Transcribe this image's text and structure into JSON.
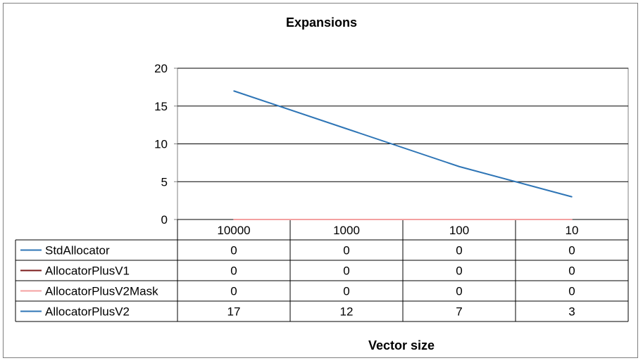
{
  "chart_data": {
    "type": "line",
    "title": "Expansions",
    "xlabel": "Vector size",
    "ylabel": "",
    "categories": [
      "10000",
      "1000",
      "100",
      "10"
    ],
    "ylim": [
      0,
      20
    ],
    "yticks": [
      0,
      5,
      10,
      15,
      20
    ],
    "grid": true,
    "legend": "data-table",
    "series": [
      {
        "name": "StdAllocator",
        "color": "#2e75b6",
        "values": [
          0,
          0,
          0,
          0
        ]
      },
      {
        "name": "AllocatorPlusV1",
        "color": "#7b1a1a",
        "values": [
          0,
          0,
          0,
          0
        ]
      },
      {
        "name": "AllocatorPlusV2Mask",
        "color": "#f4a0a0",
        "values": [
          0,
          0,
          0,
          0
        ]
      },
      {
        "name": "AllocatorPlusV2",
        "color": "#2e75b6",
        "values": [
          17,
          12,
          7,
          3
        ]
      }
    ]
  }
}
